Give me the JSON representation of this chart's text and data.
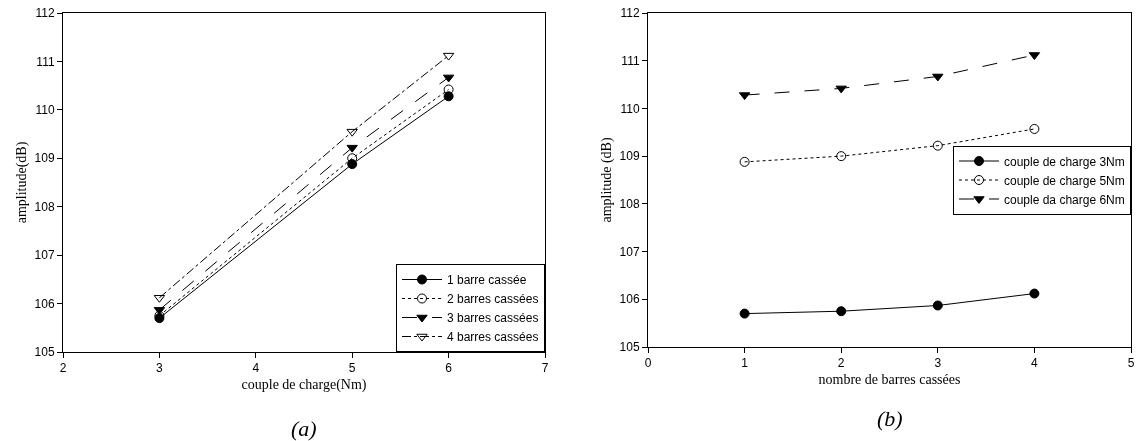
{
  "chart_data": [
    {
      "type": "line",
      "xlabel": "couple de charge(Nm)",
      "ylabel": "amplitude(dB)",
      "x": [
        3,
        5,
        6
      ],
      "xlim": [
        2,
        7
      ],
      "xticks": [
        2,
        3,
        4,
        5,
        6,
        7
      ],
      "ylim": [
        105,
        112
      ],
      "yticks": [
        105,
        106,
        107,
        108,
        109,
        110,
        111,
        112
      ],
      "grid": false,
      "legend": "bottom right",
      "annotations": [
        "(a)"
      ],
      "series": [
        {
          "name": "1 barre cassée",
          "color": "#000000",
          "marker": "circle",
          "line_style": "solid",
          "values": [
            105.7,
            108.88,
            110.28
          ]
        },
        {
          "name": "2 barres cassées",
          "color": "#000000",
          "marker": "circle-open",
          "line_style": "dotted",
          "values": [
            105.75,
            109.0,
            110.42
          ]
        },
        {
          "name": "3 barres cassées",
          "color": "#000000",
          "marker": "triangle-down",
          "line_style": "dashed",
          "values": [
            105.87,
            109.22,
            110.67
          ]
        },
        {
          "name": "4 barres cassées",
          "color": "#000000",
          "marker": "triangle-down-open",
          "line_style": "dashdot",
          "values": [
            106.12,
            109.55,
            111.12
          ]
        }
      ]
    },
    {
      "type": "line",
      "xlabel": "nombre de barres cassées",
      "ylabel": "amplitude (dB)",
      "x": [
        1,
        2,
        3,
        4
      ],
      "xlim": [
        0,
        5
      ],
      "xticks": [
        0,
        1,
        2,
        3,
        4,
        5
      ],
      "ylim": [
        105,
        112
      ],
      "yticks": [
        105,
        106,
        107,
        108,
        109,
        110,
        111,
        112
      ],
      "grid": false,
      "legend": "right",
      "annotations": [
        "(b)"
      ],
      "series": [
        {
          "name": "couple de charge 3Nm",
          "color": "#000000",
          "marker": "circle",
          "line_style": "solid",
          "values": [
            105.7,
            105.75,
            105.87,
            106.12
          ]
        },
        {
          "name": "couple de charge 5Nm",
          "color": "#000000",
          "marker": "circle-open",
          "line_style": "dotted",
          "values": [
            108.88,
            109.0,
            109.22,
            109.57
          ]
        },
        {
          "name": "couple da charge 6Nm",
          "color": "#000000",
          "marker": "triangle-down",
          "line_style": "dashed",
          "values": [
            110.28,
            110.42,
            110.67,
            111.12
          ]
        }
      ]
    }
  ]
}
